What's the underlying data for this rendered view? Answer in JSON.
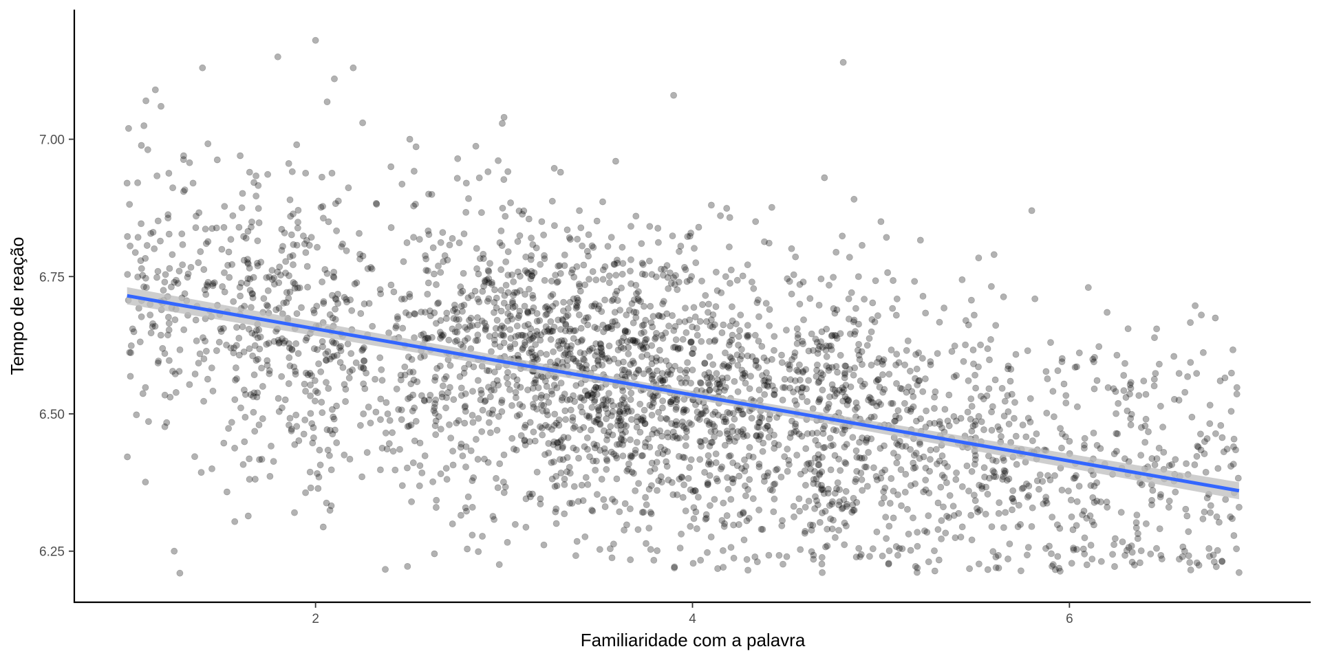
{
  "chart_data": {
    "type": "scatter",
    "title": "",
    "xlabel": "Familiaridade com a palavra",
    "ylabel": "Tempo de reação",
    "xlim": [
      0.72,
      7.28
    ],
    "ylim": [
      6.157,
      7.236
    ],
    "x_ticks": [
      {
        "value": 2,
        "label": "2"
      },
      {
        "value": 4,
        "label": "4"
      },
      {
        "value": 6,
        "label": "6"
      }
    ],
    "y_ticks": [
      {
        "value": 6.25,
        "label": "6.25"
      },
      {
        "value": 6.5,
        "label": "6.50"
      },
      {
        "value": 6.75,
        "label": "6.75"
      },
      {
        "value": 7.0,
        "label": "7.00"
      }
    ],
    "grid": false,
    "legend": "none",
    "colors": {
      "points": "#000000",
      "trend_line": "#3366ff",
      "confidence_band": "#bdbdbd",
      "axis": "#000000",
      "tick_label": "#4d4d4d"
    },
    "point_opacity": 0.3,
    "sampled_points": {
      "x": [
        1.0,
        1.1,
        1.15,
        1.18,
        1.2,
        1.25,
        1.28,
        1.3,
        1.35,
        1.4,
        1.42,
        1.45,
        1.5,
        1.55,
        1.6,
        1.65,
        1.7,
        1.72,
        1.8,
        1.9,
        2.0,
        2.1,
        2.2,
        2.25,
        2.4,
        2.5,
        2.6,
        2.7,
        2.8,
        2.9,
        3.0,
        3.1,
        3.2,
        3.3,
        3.4,
        3.5,
        3.6,
        3.7,
        3.8,
        3.9,
        4.0,
        4.1,
        4.2,
        4.3,
        4.4,
        4.5,
        4.6,
        4.7,
        4.8,
        4.9,
        5.0,
        5.1,
        5.2,
        5.3,
        5.4,
        5.5,
        5.6,
        5.7,
        5.8,
        5.9,
        6.0,
        6.1,
        6.2,
        6.3,
        6.4,
        6.5,
        6.6,
        6.7,
        6.8,
        6.9
      ],
      "y": [
        6.92,
        7.07,
        7.09,
        7.06,
        6.61,
        6.25,
        6.21,
        6.97,
        6.92,
        7.13,
        6.81,
        6.4,
        6.65,
        6.62,
        6.97,
        6.94,
        6.48,
        6.55,
        7.15,
        6.99,
        7.18,
        7.11,
        7.13,
        7.03,
        6.95,
        7.0,
        6.9,
        6.78,
        6.92,
        6.74,
        7.04,
        6.62,
        6.85,
        6.94,
        6.87,
        6.49,
        6.78,
        6.86,
        6.4,
        7.08,
        6.58,
        6.88,
        6.66,
        6.31,
        6.55,
        6.24,
        6.37,
        6.93,
        7.14,
        6.59,
        6.85,
        6.45,
        6.56,
        6.61,
        6.57,
        6.48,
        6.79,
        6.36,
        6.87,
        6.63,
        6.45,
        6.73,
        6.33,
        6.53,
        6.4,
        6.43,
        6.24,
        6.68,
        6.56,
        6.33
      ]
    },
    "trend_line": {
      "method": "linear",
      "x": [
        1.0,
        6.9
      ],
      "y": [
        6.715,
        6.36
      ],
      "band_halfwidth": 0.012
    }
  }
}
